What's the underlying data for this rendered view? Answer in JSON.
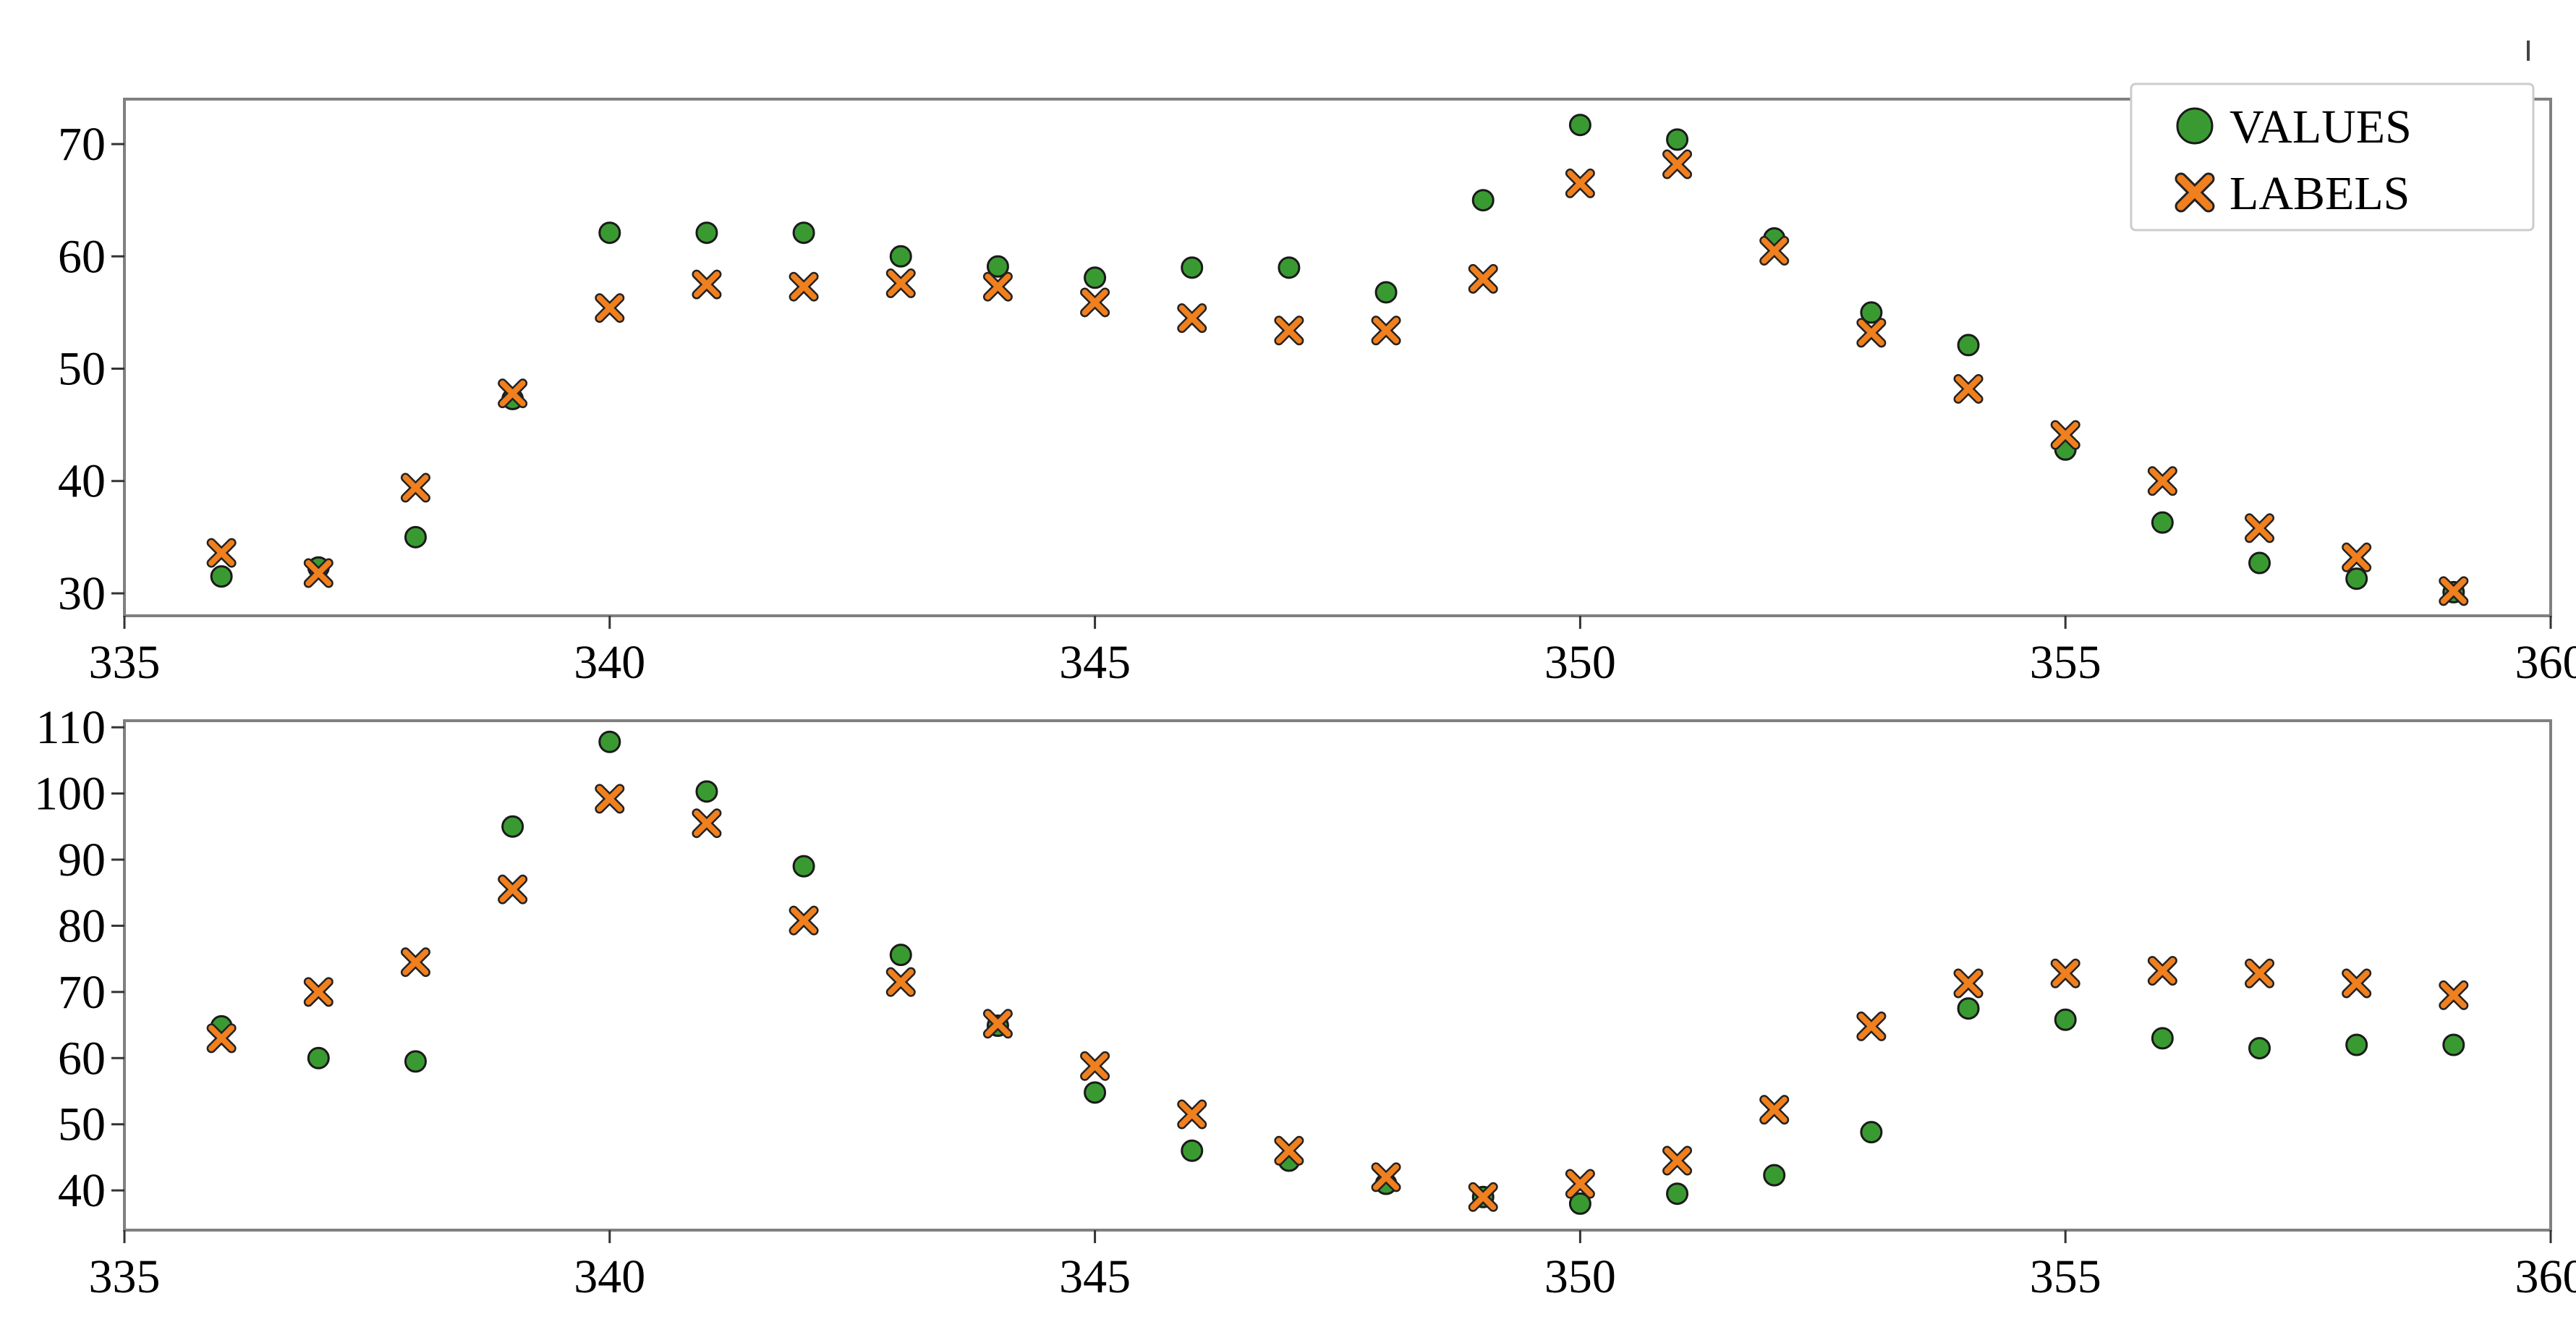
{
  "chart_data": [
    {
      "type": "scatter",
      "title": "",
      "xlabel": "",
      "ylabel": "",
      "xlim": [
        335,
        360
      ],
      "ylim": [
        28,
        74
      ],
      "xticks": [
        "335",
        "340",
        "345",
        "350",
        "355",
        "360"
      ],
      "yticks": [
        "30",
        "40",
        "50",
        "60",
        "70"
      ],
      "grid": false,
      "legend": "top-right",
      "series": [
        {
          "name": "VALUES",
          "marker": "circle",
          "color": "#3a9a32",
          "x": [
            336,
            337,
            338,
            339,
            340,
            341,
            342,
            343,
            344,
            345,
            346,
            347,
            348,
            349,
            350,
            351,
            352,
            353,
            354,
            355,
            356,
            357,
            358,
            359
          ],
          "y": [
            31.5,
            32.3,
            35.0,
            47.3,
            62.1,
            62.1,
            62.1,
            60.0,
            59.1,
            58.1,
            59.0,
            59.0,
            56.8,
            65.0,
            71.7,
            70.4,
            61.6,
            55.0,
            52.1,
            42.8,
            36.3,
            32.7,
            31.3,
            30.1
          ]
        },
        {
          "name": "LABELS",
          "marker": "x",
          "color": "#f07f1e",
          "x": [
            336,
            337,
            338,
            339,
            340,
            341,
            342,
            343,
            344,
            345,
            346,
            347,
            348,
            349,
            350,
            351,
            352,
            353,
            354,
            355,
            356,
            357,
            358,
            359
          ],
          "y": [
            33.6,
            31.8,
            39.4,
            47.8,
            55.4,
            57.5,
            57.3,
            57.6,
            57.3,
            55.9,
            54.5,
            53.4,
            53.4,
            58.0,
            66.5,
            68.2,
            60.5,
            53.2,
            48.2,
            44.1,
            40.0,
            35.8,
            33.2,
            30.2
          ]
        }
      ]
    },
    {
      "type": "scatter",
      "title": "",
      "xlabel": "",
      "ylabel": "",
      "xlim": [
        335,
        360
      ],
      "ylim": [
        34,
        111
      ],
      "xticks": [
        "335",
        "340",
        "345",
        "350",
        "355",
        "360"
      ],
      "yticks": [
        "40",
        "50",
        "60",
        "70",
        "80",
        "90",
        "100",
        "110"
      ],
      "grid": false,
      "series": [
        {
          "name": "VALUES",
          "marker": "circle",
          "color": "#3a9a32",
          "x": [
            336,
            337,
            338,
            339,
            340,
            341,
            342,
            343,
            344,
            345,
            346,
            347,
            348,
            349,
            350,
            351,
            352,
            353,
            354,
            355,
            356,
            357,
            358,
            359
          ],
          "y": [
            64.8,
            60.0,
            59.5,
            95.0,
            107.8,
            100.3,
            89.0,
            75.6,
            64.9,
            54.8,
            46.0,
            44.5,
            41.0,
            39.0,
            38.0,
            39.5,
            42.3,
            48.8,
            67.5,
            65.8,
            63.0,
            61.5,
            62.0,
            62.0
          ]
        },
        {
          "name": "LABELS",
          "marker": "x",
          "color": "#f07f1e",
          "x": [
            336,
            337,
            338,
            339,
            340,
            341,
            342,
            343,
            344,
            345,
            346,
            347,
            348,
            349,
            350,
            351,
            352,
            353,
            354,
            355,
            356,
            357,
            358,
            359
          ],
          "y": [
            63.0,
            70.0,
            74.5,
            85.5,
            99.2,
            95.5,
            80.8,
            71.5,
            65.2,
            58.8,
            51.5,
            46.0,
            42.0,
            39.0,
            41.0,
            44.5,
            52.2,
            64.8,
            71.3,
            72.8,
            73.2,
            72.8,
            71.3,
            69.5
          ]
        }
      ]
    }
  ]
}
